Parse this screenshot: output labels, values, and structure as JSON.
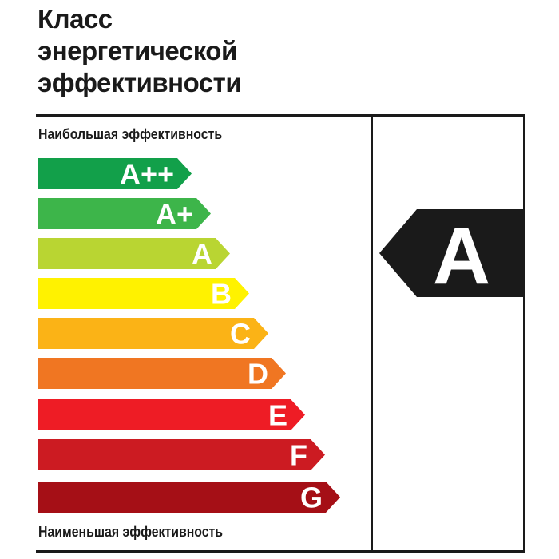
{
  "title_lines": [
    "Класс",
    "энергетической",
    "эффективности"
  ],
  "top_label": "Наибольшая эффективность",
  "bottom_label": "Наименьшая эффективность",
  "classes": [
    {
      "label": "A++",
      "color": "#12a04a"
    },
    {
      "label": "A+",
      "color": "#3db54a"
    },
    {
      "label": "A",
      "color": "#b9d532"
    },
    {
      "label": "B",
      "color": "#fff200"
    },
    {
      "label": "C",
      "color": "#fbb316"
    },
    {
      "label": "D",
      "color": "#f07622"
    },
    {
      "label": "E",
      "color": "#ee1c25"
    },
    {
      "label": "F",
      "color": "#cc1b22"
    },
    {
      "label": "G",
      "color": "#a50f16"
    }
  ],
  "rating": {
    "label": "A",
    "color": "#1a1a1a"
  }
}
